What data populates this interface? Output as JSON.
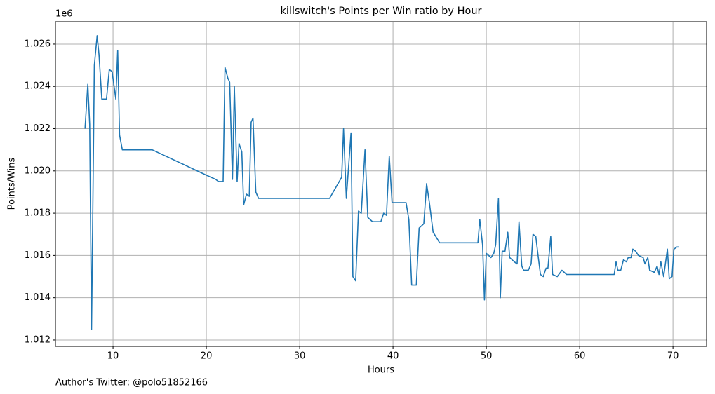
{
  "chart_data": {
    "type": "line",
    "title": "killswitch's Points per Win ratio by Hour",
    "xlabel": "Hours",
    "ylabel": "Points/Wins",
    "y_offset_label": "1e6",
    "footnote": "Author's Twitter: @polo51852166",
    "color": "#1f77b4",
    "grid": true,
    "xlim": [
      3.83,
      73.6
    ],
    "ylim": [
      1.0117,
      1.02706
    ],
    "xticks": [
      10,
      20,
      30,
      40,
      50,
      60,
      70
    ],
    "yticks": [
      1.012,
      1.014,
      1.016,
      1.018,
      {
        "value": 1.02,
        "label": "1.020"
      },
      1.022,
      1.024,
      1.026
    ],
    "x": [
      7.0,
      7.3,
      7.5,
      7.7,
      8.0,
      8.3,
      8.5,
      8.8,
      9.3,
      9.6,
      9.9,
      10.3,
      10.5,
      10.7,
      11.0,
      14.2,
      20.0,
      21.0,
      21.3,
      21.8,
      22.0,
      22.3,
      22.5,
      22.8,
      23.0,
      23.3,
      23.5,
      23.8,
      24.0,
      24.3,
      24.6,
      24.8,
      25.0,
      25.3,
      25.6,
      33.2,
      34.5,
      34.7,
      35.0,
      35.5,
      35.7,
      36.0,
      36.3,
      36.6,
      37.0,
      37.3,
      37.8,
      38.7,
      39.0,
      39.3,
      39.6,
      39.9,
      41.0,
      41.4,
      41.7,
      42.0,
      42.5,
      42.8,
      43.3,
      43.6,
      43.9,
      44.3,
      45.0,
      49.1,
      49.3,
      49.6,
      49.8,
      50.0,
      50.5,
      50.8,
      51.0,
      51.3,
      51.5,
      51.7,
      52.0,
      52.3,
      52.5,
      53.0,
      53.3,
      53.5,
      53.8,
      54.0,
      54.5,
      54.8,
      55.0,
      55.3,
      55.6,
      55.8,
      56.1,
      56.4,
      56.6,
      56.9,
      57.1,
      57.6,
      58.1,
      58.6,
      63.7,
      63.9,
      64.1,
      64.4,
      64.7,
      65.0,
      65.2,
      65.5,
      65.7,
      66.0,
      66.3,
      66.8,
      67.0,
      67.3,
      67.5,
      68.0,
      68.3,
      68.5,
      68.7,
      69.0,
      69.4,
      69.6,
      69.9,
      70.1,
      70.4,
      70.6
    ],
    "values": [
      1.022,
      1.0241,
      1.0222,
      1.0125,
      1.025,
      1.0264,
      1.0255,
      1.0234,
      1.0234,
      1.0248,
      1.0247,
      1.0234,
      1.0257,
      1.0217,
      1.021,
      1.021,
      1.0198,
      1.0196,
      1.0195,
      1.0195,
      1.0249,
      1.0244,
      1.0242,
      1.0196,
      1.024,
      1.0195,
      1.0213,
      1.0209,
      1.0184,
      1.0189,
      1.0188,
      1.0223,
      1.0225,
      1.019,
      1.0187,
      1.0187,
      1.0197,
      1.022,
      1.0187,
      1.0218,
      1.015,
      1.0148,
      1.0181,
      1.018,
      1.021,
      1.0178,
      1.0176,
      1.0176,
      1.018,
      1.0179,
      1.0207,
      1.0185,
      1.0185,
      1.0185,
      1.0177,
      1.0146,
      1.0146,
      1.0173,
      1.0175,
      1.0194,
      1.0185,
      1.0171,
      1.0166,
      1.0166,
      1.0177,
      1.0165,
      1.0139,
      1.0161,
      1.0159,
      1.0161,
      1.0165,
      1.0187,
      1.014,
      1.0162,
      1.0162,
      1.0171,
      1.0159,
      1.0157,
      1.0156,
      1.0176,
      1.0155,
      1.0153,
      1.0153,
      1.0156,
      1.017,
      1.0169,
      1.0158,
      1.0151,
      1.015,
      1.0154,
      1.0154,
      1.0169,
      1.0151,
      1.015,
      1.0153,
      1.0151,
      1.0151,
      1.0157,
      1.0153,
      1.0153,
      1.0158,
      1.0157,
      1.0159,
      1.0159,
      1.0163,
      1.0162,
      1.016,
      1.0159,
      1.0156,
      1.0159,
      1.0153,
      1.0152,
      1.0155,
      1.0151,
      1.0157,
      1.015,
      1.0163,
      1.0149,
      1.015,
      1.0163,
      1.0164,
      1.0164
    ]
  }
}
